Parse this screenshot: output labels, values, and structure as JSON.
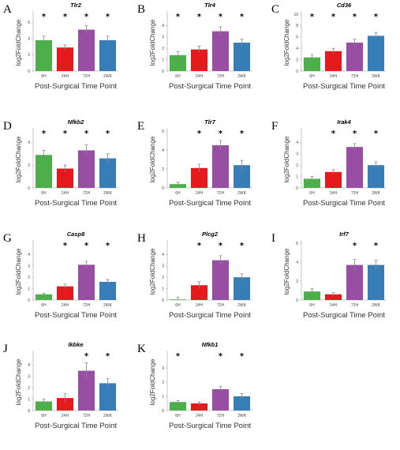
{
  "colors": {
    "6H": "#4daf4a",
    "24H": "#e41a1c",
    "72H": "#984ea3",
    "2WK": "#377eb8"
  },
  "chart_data": [
    {
      "type": "bar",
      "letter": "A",
      "title": "Tlr2",
      "categories": [
        "6H",
        "24H",
        "72H",
        "2WK"
      ],
      "values": [
        3.8,
        2.9,
        5.1,
        3.8
      ],
      "errors": [
        0.5,
        0.3,
        0.5,
        0.5
      ],
      "significant": [
        true,
        true,
        true,
        true
      ],
      "ylim": [
        0,
        7
      ],
      "yticks": [
        0,
        2,
        4,
        6
      ],
      "xlabel": "Post-Surgical Time Point",
      "ylabel": "log2FoldChange"
    },
    {
      "type": "bar",
      "letter": "B",
      "title": "Tlr4",
      "categories": [
        "6H",
        "24H",
        "72H",
        "2WK"
      ],
      "values": [
        1.4,
        1.9,
        3.5,
        2.5
      ],
      "errors": [
        0.3,
        0.3,
        0.4,
        0.3
      ],
      "significant": [
        true,
        true,
        true,
        true
      ],
      "ylim": [
        0,
        5
      ],
      "yticks": [
        0,
        1,
        2,
        3,
        4
      ],
      "xlabel": "Post-Surgical Time Point",
      "ylabel": "log2FoldChange"
    },
    {
      "type": "bar",
      "letter": "C",
      "title": "Cd36",
      "categories": [
        "6H",
        "24H",
        "72H",
        "2WK"
      ],
      "values": [
        2.4,
        3.5,
        5.0,
        6.2
      ],
      "errors": [
        0.5,
        0.5,
        0.6,
        0.6
      ],
      "significant": [
        true,
        true,
        true,
        true
      ],
      "ylim": [
        0,
        10
      ],
      "yticks": [
        0,
        2,
        4,
        6,
        8,
        10
      ],
      "xlabel": "Post-Surgical Time Point",
      "ylabel": "log2FoldChange"
    },
    {
      "type": "bar",
      "letter": "D",
      "title": "Nfkb2",
      "categories": [
        "6H",
        "24H",
        "72H",
        "2WK"
      ],
      "values": [
        2.9,
        1.7,
        3.3,
        2.6
      ],
      "errors": [
        0.4,
        0.3,
        0.5,
        0.4
      ],
      "significant": [
        true,
        true,
        true,
        true
      ],
      "ylim": [
        0,
        5
      ],
      "yticks": [
        0,
        2,
        4
      ],
      "xlabel": "Post-Surgical Time Point",
      "ylabel": "log2FoldChange"
    },
    {
      "type": "bar",
      "letter": "E",
      "title": "Tlr7",
      "categories": [
        "6H",
        "24H",
        "72H",
        "2WK"
      ],
      "values": [
        0.4,
        2.1,
        4.5,
        2.4
      ],
      "errors": [
        0.2,
        0.4,
        0.5,
        0.5
      ],
      "significant": [
        false,
        true,
        true,
        true
      ],
      "ylim": [
        0,
        6
      ],
      "yticks": [
        0,
        2,
        4,
        6
      ],
      "xlabel": "Post-Surgical Time Point",
      "ylabel": "log2FoldChange"
    },
    {
      "type": "bar",
      "letter": "F",
      "title": "Irak4",
      "categories": [
        "6H",
        "24H",
        "72H",
        "2WK"
      ],
      "values": [
        0.8,
        1.4,
        3.6,
        2.0
      ],
      "errors": [
        0.2,
        0.2,
        0.3,
        0.3
      ],
      "significant": [
        false,
        true,
        true,
        true
      ],
      "ylim": [
        0,
        5
      ],
      "yticks": [
        0,
        1,
        2,
        3,
        4
      ],
      "xlabel": "Post-Surgical Time Point",
      "ylabel": "log2FoldChange"
    },
    {
      "type": "bar",
      "letter": "G",
      "title": "Casp8",
      "categories": [
        "6H",
        "24H",
        "72H",
        "2WK"
      ],
      "values": [
        0.5,
        1.2,
        3.1,
        1.6
      ],
      "errors": [
        0.1,
        0.2,
        0.3,
        0.2
      ],
      "significant": [
        false,
        true,
        true,
        true
      ],
      "ylim": [
        0,
        5
      ],
      "yticks": [
        0,
        1,
        2,
        3,
        4
      ],
      "xlabel": "Post-Surgical Time Point",
      "ylabel": "log2FoldChange"
    },
    {
      "type": "bar",
      "letter": "H",
      "title": "Plcg2",
      "categories": [
        "6H",
        "24H",
        "72H",
        "2WK"
      ],
      "values": [
        0.05,
        1.3,
        3.5,
        2.0
      ],
      "errors": [
        0.2,
        0.3,
        0.4,
        0.3
      ],
      "significant": [
        false,
        true,
        true,
        true
      ],
      "ylim": [
        0,
        5
      ],
      "yticks": [
        0,
        1,
        2,
        3,
        4
      ],
      "xlabel": "Post-Surgical Time Point",
      "ylabel": "log2FoldChange"
    },
    {
      "type": "bar",
      "letter": "I",
      "title": "Irf7",
      "categories": [
        "6H",
        "24H",
        "72H",
        "2WK"
      ],
      "values": [
        0.9,
        0.6,
        3.7,
        3.7
      ],
      "errors": [
        0.3,
        0.2,
        0.6,
        0.5
      ],
      "significant": [
        false,
        false,
        true,
        true
      ],
      "ylim": [
        0,
        6
      ],
      "yticks": [
        0,
        2,
        4,
        6
      ],
      "xlabel": "Post-Surgical Time Point",
      "ylabel": "log2FoldChange"
    },
    {
      "type": "bar",
      "letter": "J",
      "title": "Ikbke",
      "categories": [
        "6H",
        "24H",
        "72H",
        "2WK"
      ],
      "values": [
        0.8,
        1.1,
        3.5,
        2.4
      ],
      "errors": [
        0.2,
        0.4,
        0.7,
        0.4
      ],
      "significant": [
        false,
        false,
        true,
        true
      ],
      "ylim": [
        0,
        5
      ],
      "yticks": [
        0,
        1,
        2,
        3,
        4
      ],
      "xlabel": "Post-Surgical Time Point",
      "ylabel": "log2FoldChange"
    },
    {
      "type": "bar",
      "letter": "K",
      "title": "Nfkb1",
      "categories": [
        "6H",
        "24H",
        "72H",
        "2WK"
      ],
      "values": [
        0.6,
        0.5,
        1.5,
        1.0
      ],
      "errors": [
        0.1,
        0.1,
        0.2,
        0.2
      ],
      "significant": [
        true,
        false,
        true,
        true
      ],
      "ylim": [
        0,
        4
      ],
      "yticks": [
        0,
        1,
        2,
        3
      ],
      "xlabel": "Post-Surgical Time Point",
      "ylabel": "log2FoldChange"
    }
  ]
}
